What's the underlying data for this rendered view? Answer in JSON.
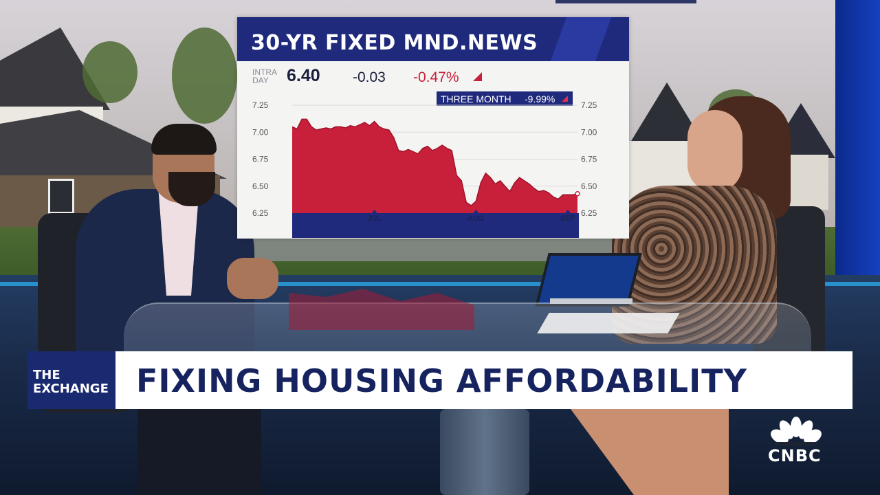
{
  "ticker": {
    "title": "30-YR FIXED MND.NEWS",
    "intraday_label_line1": "INTRA",
    "intraday_label_line2": "DAY",
    "price": "6.40",
    "change": "-0.03",
    "change_pct": "-0.47%",
    "period_label": "THREE MONTH",
    "period_change": "-9.99%",
    "colors": {
      "header": "#1f2a7c",
      "fill": "#c8203a",
      "baseline": "#1f2a7c"
    }
  },
  "chart_data": {
    "type": "area",
    "title": "30-YR FIXED MND.NEWS",
    "y_ticks": [
      "7.25",
      "7.00",
      "6.75",
      "6.50",
      "6.25"
    ],
    "y_tick_values": [
      7.25,
      7.0,
      6.75,
      6.5,
      6.25
    ],
    "x_ticks": [
      "JUL",
      "AUG",
      "SEP"
    ],
    "x_tick_index": [
      17,
      38,
      57
    ],
    "ylim": [
      6.25,
      7.25
    ],
    "grid": true,
    "series": [
      {
        "values": [
          7.05,
          7.03,
          7.12,
          7.12,
          7.05,
          7.02,
          7.03,
          7.04,
          7.03,
          7.05,
          7.05,
          7.04,
          7.06,
          7.05,
          7.07,
          7.09,
          7.06,
          7.1,
          7.05,
          7.03,
          7.02,
          6.95,
          6.83,
          6.82,
          6.84,
          6.82,
          6.8,
          6.85,
          6.87,
          6.83,
          6.85,
          6.88,
          6.85,
          6.83,
          6.6,
          6.55,
          6.35,
          6.32,
          6.36,
          6.53,
          6.62,
          6.58,
          6.52,
          6.55,
          6.5,
          6.45,
          6.53,
          6.58,
          6.55,
          6.52,
          6.48,
          6.45,
          6.46,
          6.44,
          6.4,
          6.38,
          6.42,
          6.42,
          6.42,
          6.43
        ]
      }
    ]
  },
  "lower_third": {
    "show_line1": "THE",
    "show_line2": "EXCHANGE",
    "headline": "FIXING HOUSING AFFORDABILITY"
  },
  "network": {
    "logo_text": "CNBC",
    "icon": "peacock-icon"
  }
}
